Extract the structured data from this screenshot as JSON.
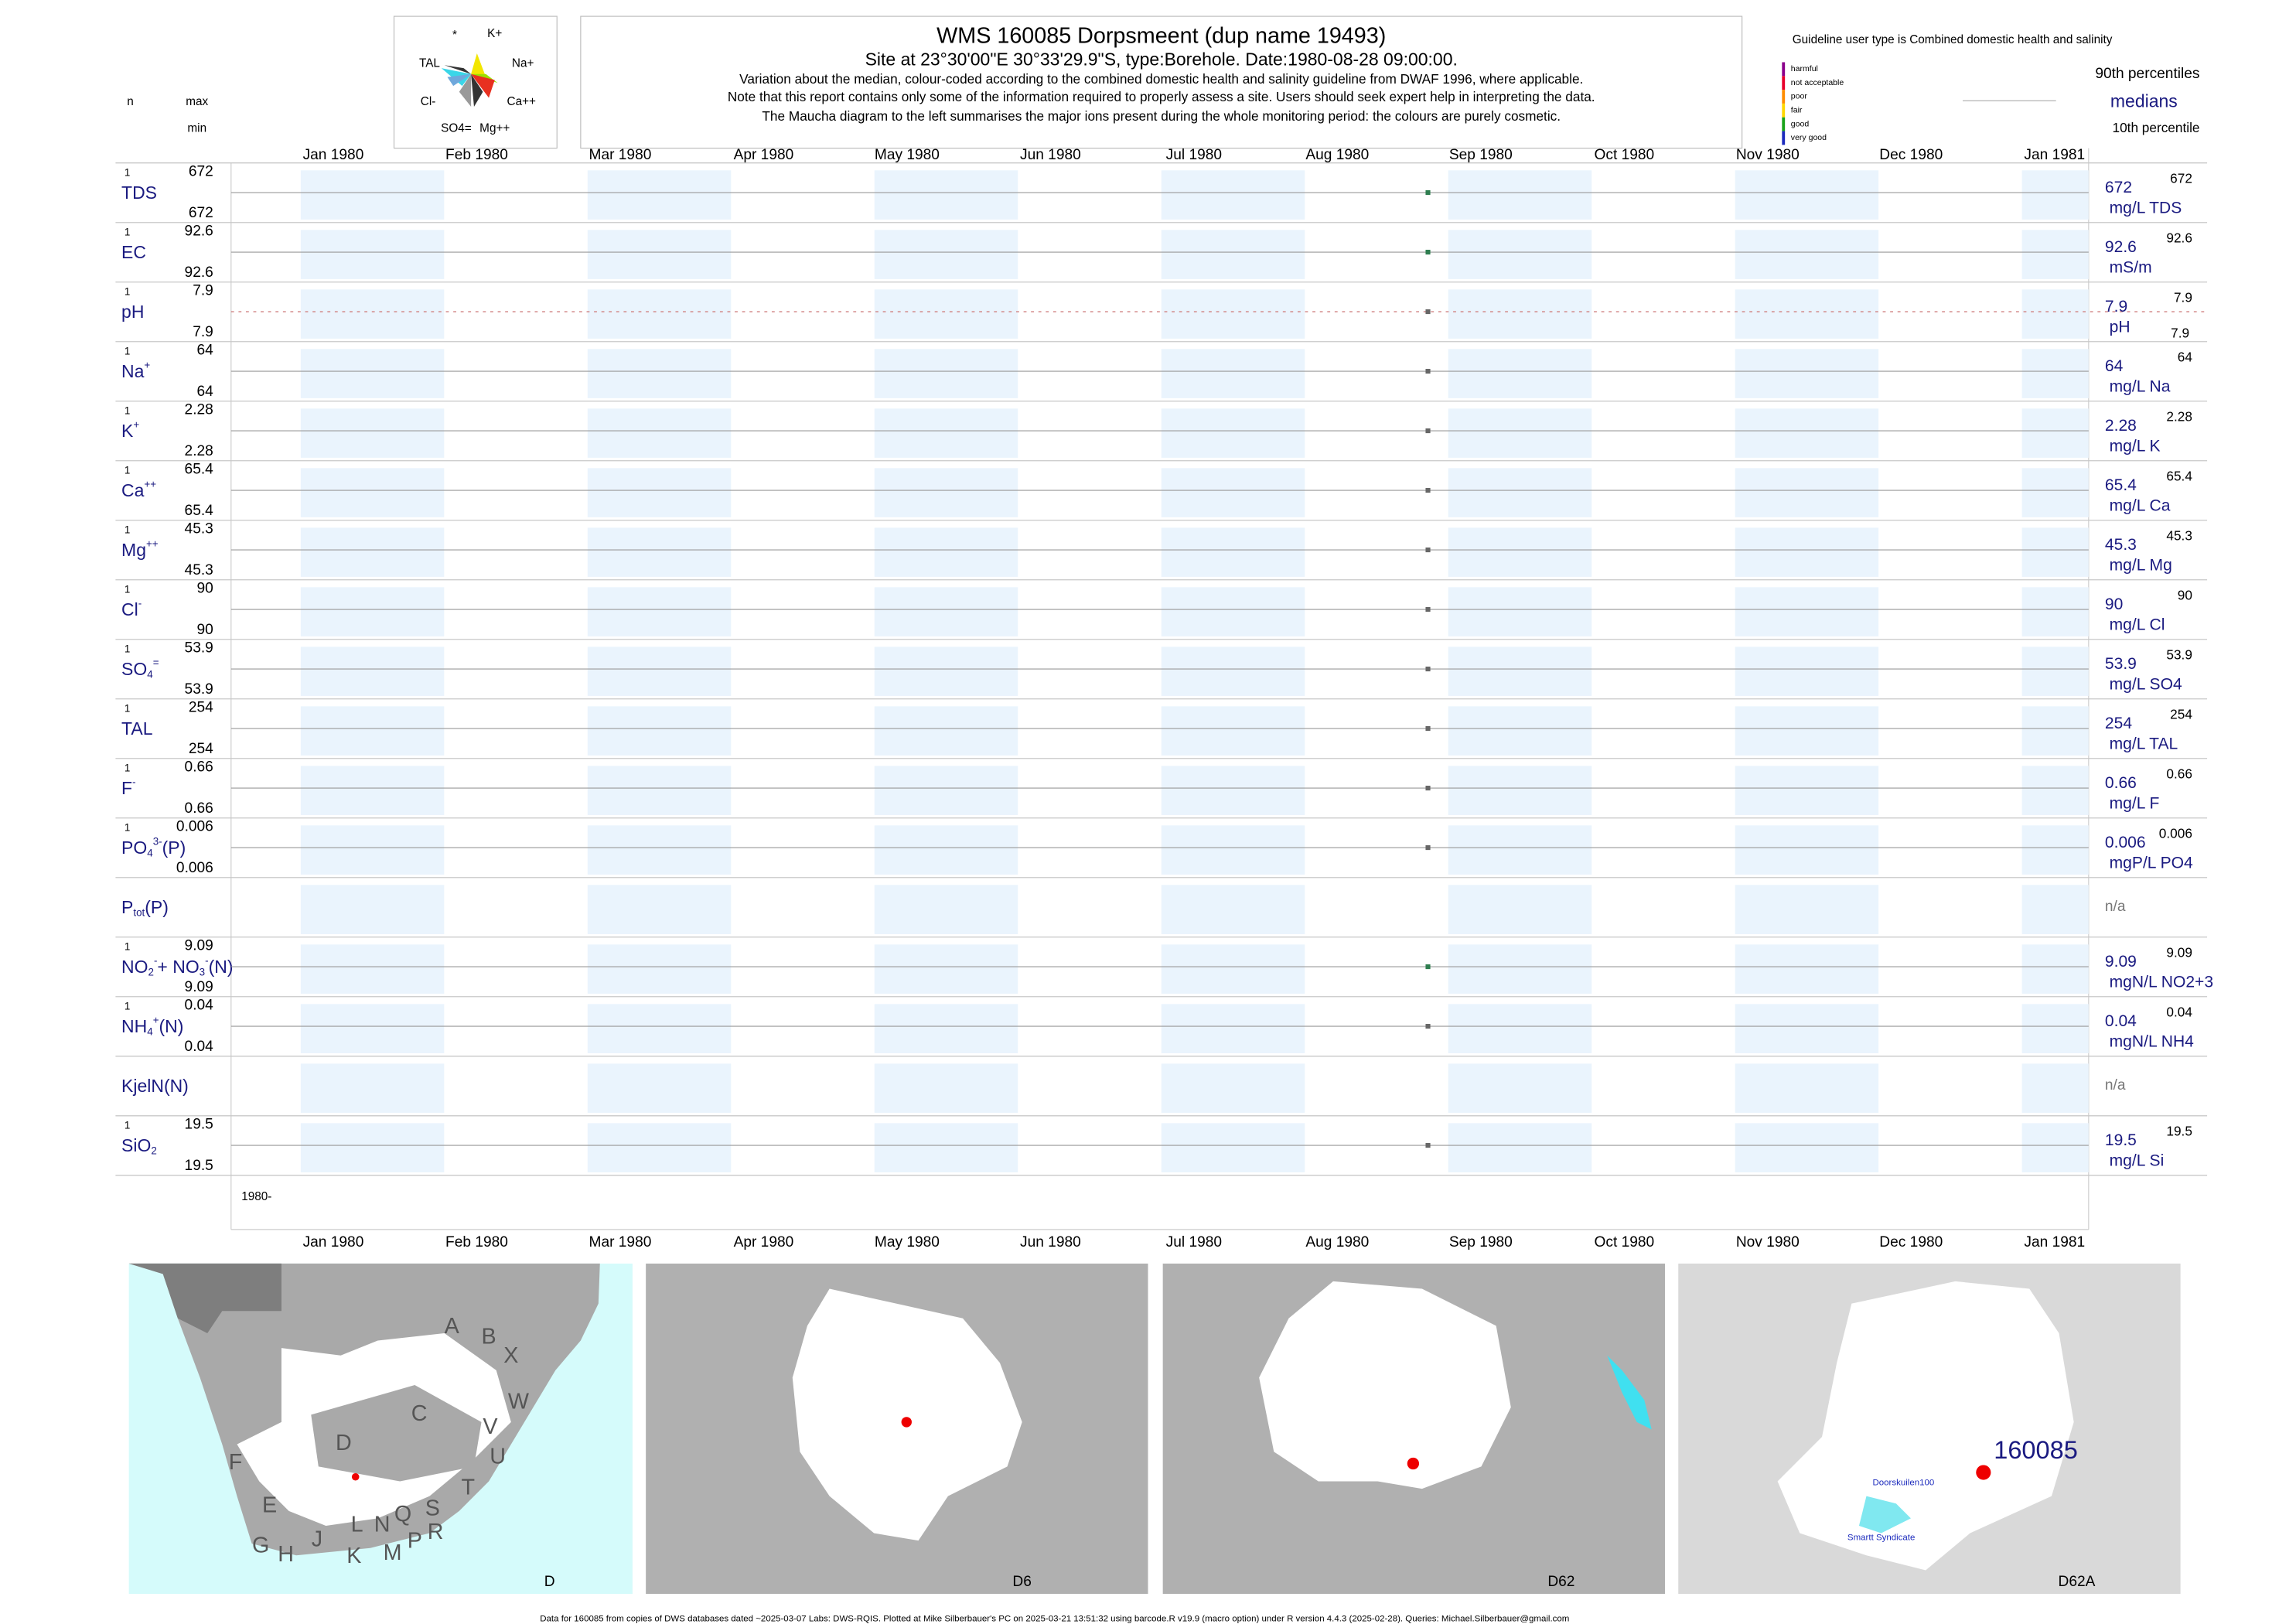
{
  "header": {
    "title": "WMS 160085  Dorpsmeent (dup name 19493)",
    "subtitle": "Site at 23°30'00\"E 30°33'29.9\"S, type:Borehole. Date:1980-08-28 09:00:00.",
    "notes": [
      "Variation about the median,  colour-coded according to the combined domestic health and salinity guideline from DWAF 1996, where applicable.",
      "Note that this report contains only some of the information required to properly assess a site. Users should seek expert help in interpreting the data.",
      "The Maucha diagram to the left summarises the major ions present during the whole monitoring period: the colours are purely cosmetic."
    ],
    "column_n": "n",
    "column_max": "max",
    "column_min": "min"
  },
  "maucha": {
    "labels": [
      "*",
      "K+",
      "TAL",
      "Na+",
      "Cl-",
      "Ca++",
      "SO4=",
      "Mg++"
    ]
  },
  "guideline": {
    "title": "Guideline user type is Combined domestic health and salinity",
    "classes": [
      {
        "name": "harmful",
        "color": "#8b008b"
      },
      {
        "name": "not acceptable",
        "color": "#e8002a"
      },
      {
        "name": "poor",
        "color": "#ff8c00"
      },
      {
        "name": "fair",
        "color": "#ffd700"
      },
      {
        "name": "good",
        "color": "#1aa31a"
      },
      {
        "name": "very good",
        "color": "#1c2bbd"
      }
    ],
    "p90": "90th percentiles",
    "median": "medians",
    "p10": "10th percentile"
  },
  "months": [
    "Jan 1980",
    "Feb 1980",
    "Mar 1980",
    "Apr 1980",
    "May 1980",
    "Jun 1980",
    "Jul 1980",
    "Aug 1980",
    "Sep 1980",
    "Oct 1980",
    "Nov 1980",
    "Dec 1980",
    "Jan 1981"
  ],
  "year_label": "1980-",
  "rows": [
    {
      "label": [
        {
          "t": "TDS"
        }
      ],
      "n": 1,
      "max": 672,
      "min": 672,
      "median": 672,
      "unit": "mg/L TDS",
      "p90": 672,
      "color": "#2e7d4f"
    },
    {
      "label": [
        {
          "t": "EC"
        }
      ],
      "n": 1,
      "max": 92.6,
      "min": 92.6,
      "median": 92.6,
      "unit": "mS/m",
      "p90": 92.6,
      "color": "#2e7d4f"
    },
    {
      "label": [
        {
          "t": "pH"
        }
      ],
      "n": 1,
      "max": 7.9,
      "min": 7.9,
      "median": 7.9,
      "unit": "pH",
      "p90": 7.9,
      "p10": 7.9,
      "color": "#666666"
    },
    {
      "label": [
        {
          "t": "Na"
        },
        {
          "t": "+",
          "s": "sup"
        }
      ],
      "n": 1,
      "max": 64,
      "min": 64,
      "median": 64,
      "unit": "mg/L Na",
      "p90": 64,
      "color": "#666666"
    },
    {
      "label": [
        {
          "t": "K"
        },
        {
          "t": "+",
          "s": "sup"
        }
      ],
      "n": 1,
      "max": 2.28,
      "min": 2.28,
      "median": 2.28,
      "unit": "mg/L K",
      "p90": 2.28,
      "color": "#666666"
    },
    {
      "label": [
        {
          "t": "Ca"
        },
        {
          "t": "++",
          "s": "sup"
        }
      ],
      "n": 1,
      "max": 65.4,
      "min": 65.4,
      "median": 65.4,
      "unit": "mg/L Ca",
      "p90": 65.4,
      "color": "#666666"
    },
    {
      "label": [
        {
          "t": "Mg"
        },
        {
          "t": "++",
          "s": "sup"
        }
      ],
      "n": 1,
      "max": 45.3,
      "min": 45.3,
      "median": 45.3,
      "unit": "mg/L Mg",
      "p90": 45.3,
      "color": "#666666"
    },
    {
      "label": [
        {
          "t": "Cl"
        },
        {
          "t": "-",
          "s": "sup"
        }
      ],
      "n": 1,
      "max": 90,
      "min": 90,
      "median": 90,
      "unit": "mg/L Cl",
      "p90": 90,
      "color": "#666666"
    },
    {
      "label": [
        {
          "t": "SO"
        },
        {
          "t": "4",
          "s": "sub"
        },
        {
          "t": "=",
          "s": "sup"
        }
      ],
      "n": 1,
      "max": 53.9,
      "min": 53.9,
      "median": 53.9,
      "unit": "mg/L SO4",
      "p90": 53.9,
      "color": "#666666"
    },
    {
      "label": [
        {
          "t": "TAL"
        }
      ],
      "n": 1,
      "max": 254,
      "min": 254,
      "median": 254,
      "unit": "mg/L TAL",
      "p90": 254,
      "color": "#666666"
    },
    {
      "label": [
        {
          "t": "F"
        },
        {
          "t": "-",
          "s": "sup"
        }
      ],
      "n": 1,
      "max": 0.66,
      "min": 0.66,
      "median": 0.66,
      "unit": "mg/L F",
      "p90": 0.66,
      "color": "#666666"
    },
    {
      "label": [
        {
          "t": "PO"
        },
        {
          "t": "4",
          "s": "sub"
        },
        {
          "t": "3-",
          "s": "sup"
        },
        {
          "t": "(P)"
        }
      ],
      "n": 1,
      "max": 0.006,
      "min": 0.006,
      "median": 0.006,
      "unit": "mgP/L PO4",
      "p90": 0.006,
      "color": "#666666"
    },
    {
      "label": [
        {
          "t": "P"
        },
        {
          "t": "tot",
          "s": "sub"
        },
        {
          "t": "(P)"
        }
      ],
      "status": "n/a"
    },
    {
      "label": [
        {
          "t": "NO"
        },
        {
          "t": "2",
          "s": "sub"
        },
        {
          "t": "-",
          "s": "sup"
        },
        {
          "t": "+ NO"
        },
        {
          "t": "3",
          "s": "sub"
        },
        {
          "t": "-",
          "s": "sup"
        },
        {
          "t": "(N)"
        }
      ],
      "n": 1,
      "max": 9.09,
      "min": 9.09,
      "median": 9.09,
      "unit": "mgN/L NO2+3",
      "p90": 9.09,
      "color": "#2e7d4f"
    },
    {
      "label": [
        {
          "t": "NH"
        },
        {
          "t": "4",
          "s": "sub"
        },
        {
          "t": "+",
          "s": "sup"
        },
        {
          "t": "(N)"
        }
      ],
      "n": 1,
      "max": 0.04,
      "min": 0.04,
      "median": 0.04,
      "unit": "mgN/L NH4",
      "p90": 0.04,
      "color": "#666666"
    },
    {
      "label": [
        {
          "t": "KjelN(N)"
        }
      ],
      "status": "n/a"
    },
    {
      "label": [
        {
          "t": "SiO"
        },
        {
          "t": "2",
          "s": "sub"
        }
      ],
      "n": 1,
      "max": 19.5,
      "min": 19.5,
      "median": 19.5,
      "unit": "mg/L Si",
      "p90": 19.5,
      "color": "#666666"
    }
  ],
  "maps": {
    "regions": [
      "A",
      "B",
      "X",
      "W",
      "C",
      "D",
      "V",
      "U",
      "F",
      "T",
      "E",
      "S",
      "Q",
      "N",
      "L",
      "R",
      "G",
      "H",
      "J",
      "M",
      "P",
      "K"
    ],
    "panels": [
      "D",
      "D6",
      "D62",
      "D62A"
    ],
    "site": "160085",
    "places": [
      "Doorskuilen100",
      "Smartt Syndicate"
    ]
  },
  "footer": "Data for 160085 from copies of DWS databases dated ~2025-03-07 Labs: DWS-RQIS. Plotted at Mike Silberbauer's PC on 2025-03-21 13:51:32 using barcode.R v19.9 (macro option) under R version 4.4.3 (2025-02-28). Queries: Michael.Silberbauer@gmail.com"
}
